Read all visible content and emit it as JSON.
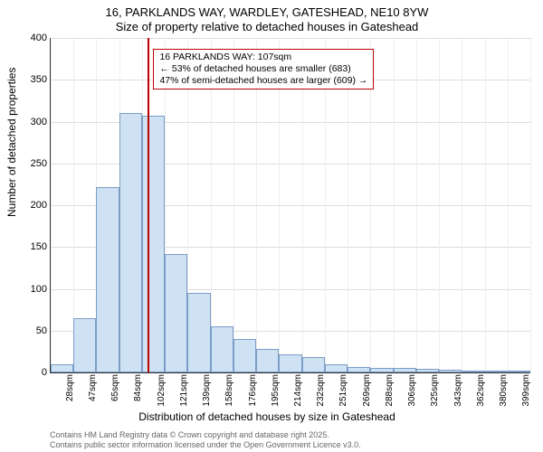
{
  "title_line1": "16, PARKLANDS WAY, WARDLEY, GATESHEAD, NE10 8YW",
  "title_line2": "Size of property relative to detached houses in Gateshead",
  "y_label": "Number of detached properties",
  "x_label": "Distribution of detached houses by size in Gateshead",
  "chart": {
    "type": "histogram",
    "y_max": 400,
    "y_tick_step": 50,
    "bar_fill": "#cfe2f3",
    "bar_stroke": "#7a9cc6",
    "grid_color": "#dddddd",
    "background_color": "#ffffff",
    "marker_color": "#c00000",
    "marker_x_value": 107,
    "bin_width_sqm": 18.7,
    "bins": [
      {
        "label": "28sqm",
        "value": 10
      },
      {
        "label": "47sqm",
        "value": 65
      },
      {
        "label": "65sqm",
        "value": 222
      },
      {
        "label": "84sqm",
        "value": 310
      },
      {
        "label": "102sqm",
        "value": 307
      },
      {
        "label": "121sqm",
        "value": 142
      },
      {
        "label": "139sqm",
        "value": 95
      },
      {
        "label": "158sqm",
        "value": 55
      },
      {
        "label": "176sqm",
        "value": 40
      },
      {
        "label": "195sqm",
        "value": 28
      },
      {
        "label": "214sqm",
        "value": 22
      },
      {
        "label": "232sqm",
        "value": 18
      },
      {
        "label": "251sqm",
        "value": 10
      },
      {
        "label": "269sqm",
        "value": 6
      },
      {
        "label": "288sqm",
        "value": 5
      },
      {
        "label": "306sqm",
        "value": 5
      },
      {
        "label": "325sqm",
        "value": 4
      },
      {
        "label": "343sqm",
        "value": 3
      },
      {
        "label": "362sqm",
        "value": 2
      },
      {
        "label": "380sqm",
        "value": 2
      },
      {
        "label": "399sqm",
        "value": 2
      }
    ]
  },
  "annotation": {
    "line1": "16 PARKLANDS WAY: 107sqm",
    "line2": "← 53% of detached houses are smaller (683)",
    "line3": "47% of semi-detached houses are larger (609) →",
    "border_color": "#c00000",
    "font_size": 10.5
  },
  "credits": {
    "line1": "Contains HM Land Registry data © Crown copyright and database right 2025.",
    "line2": "Contains public sector information licensed under the Open Government Licence v3.0."
  }
}
